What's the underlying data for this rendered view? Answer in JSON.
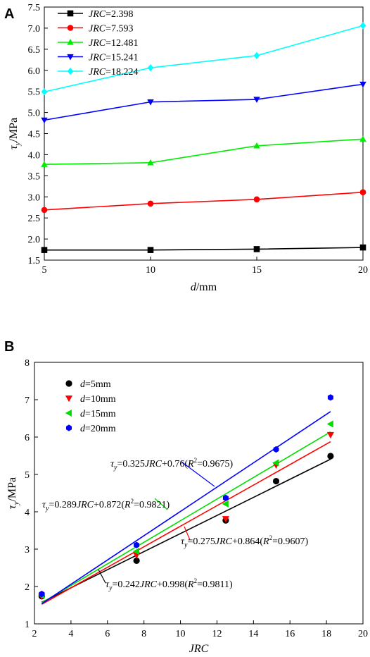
{
  "chart_data": [
    {
      "panel": "A",
      "type": "line",
      "xlabel_italic": "d",
      "xlabel_rest": "/mm",
      "ylabel_tau": "τ",
      "ylabel_sub": "y",
      "ylabel_rest": "/MPa",
      "x": [
        5,
        10,
        15,
        20
      ],
      "xticks": [
        "5",
        "10",
        "15",
        "20"
      ],
      "xlim": [
        5,
        20
      ],
      "ylim": [
        1.5,
        7.5
      ],
      "yticks": [
        "1.5",
        "2.0",
        "2.5",
        "3.0",
        "3.5",
        "4.0",
        "4.5",
        "5.0",
        "5.5",
        "6.0",
        "6.5",
        "7.0",
        "7.5"
      ],
      "grid": false,
      "legend_position": "top-left",
      "legend_prefix": "JRC",
      "series": [
        {
          "name": "=2.398",
          "color": "#000000",
          "marker": "square",
          "values": [
            1.74,
            1.74,
            1.76,
            1.8
          ]
        },
        {
          "name": "=7.593",
          "color": "#ff0000",
          "marker": "circle",
          "values": [
            2.69,
            2.84,
            2.94,
            3.11
          ]
        },
        {
          "name": "=12.481",
          "color": "#00ee00",
          "marker": "triangle-up",
          "values": [
            3.77,
            3.81,
            4.21,
            4.37
          ]
        },
        {
          "name": "=15.241",
          "color": "#0000ff",
          "marker": "triangle-down",
          "values": [
            4.82,
            5.25,
            5.31,
            5.67
          ]
        },
        {
          "name": "=18.224",
          "color": "#00ffff",
          "marker": "diamond",
          "values": [
            5.49,
            6.06,
            6.35,
            7.06
          ]
        }
      ]
    },
    {
      "panel": "B",
      "type": "scatter",
      "xlabel": "JRC",
      "ylabel_tau": "τ",
      "ylabel_sub": "y",
      "ylabel_rest": "/MPa",
      "xlim": [
        2,
        20
      ],
      "ylim": [
        1,
        8
      ],
      "xticks": [
        "2",
        "4",
        "6",
        "8",
        "10",
        "12",
        "14",
        "16",
        "18",
        "20"
      ],
      "yticks": [
        "1",
        "2",
        "3",
        "4",
        "5",
        "6",
        "7",
        "8"
      ],
      "grid": false,
      "legend_position": "top-left",
      "legend_prefix": "d",
      "x": [
        2.398,
        7.593,
        12.481,
        15.241,
        18.224
      ],
      "series": [
        {
          "name": "=5mm",
          "color": "#000000",
          "marker": "circle",
          "values": [
            1.74,
            2.69,
            3.77,
            4.82,
            5.49
          ]
        },
        {
          "name": "=10mm",
          "color": "#ff0000",
          "marker": "triangle-down",
          "values": [
            1.74,
            2.84,
            3.81,
            5.25,
            6.06
          ]
        },
        {
          "name": "=15mm",
          "color": "#00dd00",
          "marker": "triangle-left",
          "values": [
            1.76,
            2.94,
            4.21,
            5.31,
            6.35
          ]
        },
        {
          "name": "=20mm",
          "color": "#0000ff",
          "marker": "hexagon",
          "values": [
            1.8,
            3.11,
            4.37,
            5.67,
            7.06
          ]
        }
      ],
      "fits": [
        {
          "series": "=5mm",
          "slope": 0.242,
          "intercept": 0.998,
          "x_range": [
            2.398,
            18.224
          ],
          "eq_coef": "=0.242",
          "eq_mid": "+0.998(",
          "r2_value": "=0.9811)"
        },
        {
          "series": "=10mm",
          "slope": 0.275,
          "intercept": 0.864,
          "x_range": [
            2.398,
            18.224
          ],
          "eq_coef": "=0.275",
          "eq_mid": "+0.864(",
          "r2_value": "=0.9607)"
        },
        {
          "series": "=15mm",
          "slope": 0.289,
          "intercept": 0.872,
          "x_range": [
            2.398,
            18.224
          ],
          "eq_coef": "=0.289",
          "eq_mid": "+0.872(",
          "r2_value": "=0.9821)"
        },
        {
          "series": "=20mm",
          "slope": 0.325,
          "intercept": 0.76,
          "x_range": [
            2.398,
            18.224
          ],
          "eq_coef": "=0.325",
          "eq_mid": "+0.76(",
          "r2_value": "=0.9675)"
        }
      ],
      "eq_tau": "τ",
      "eq_sub": "y",
      "eq_jrc": "JRC",
      "eq_r": "R",
      "eq_sup": "2"
    }
  ]
}
